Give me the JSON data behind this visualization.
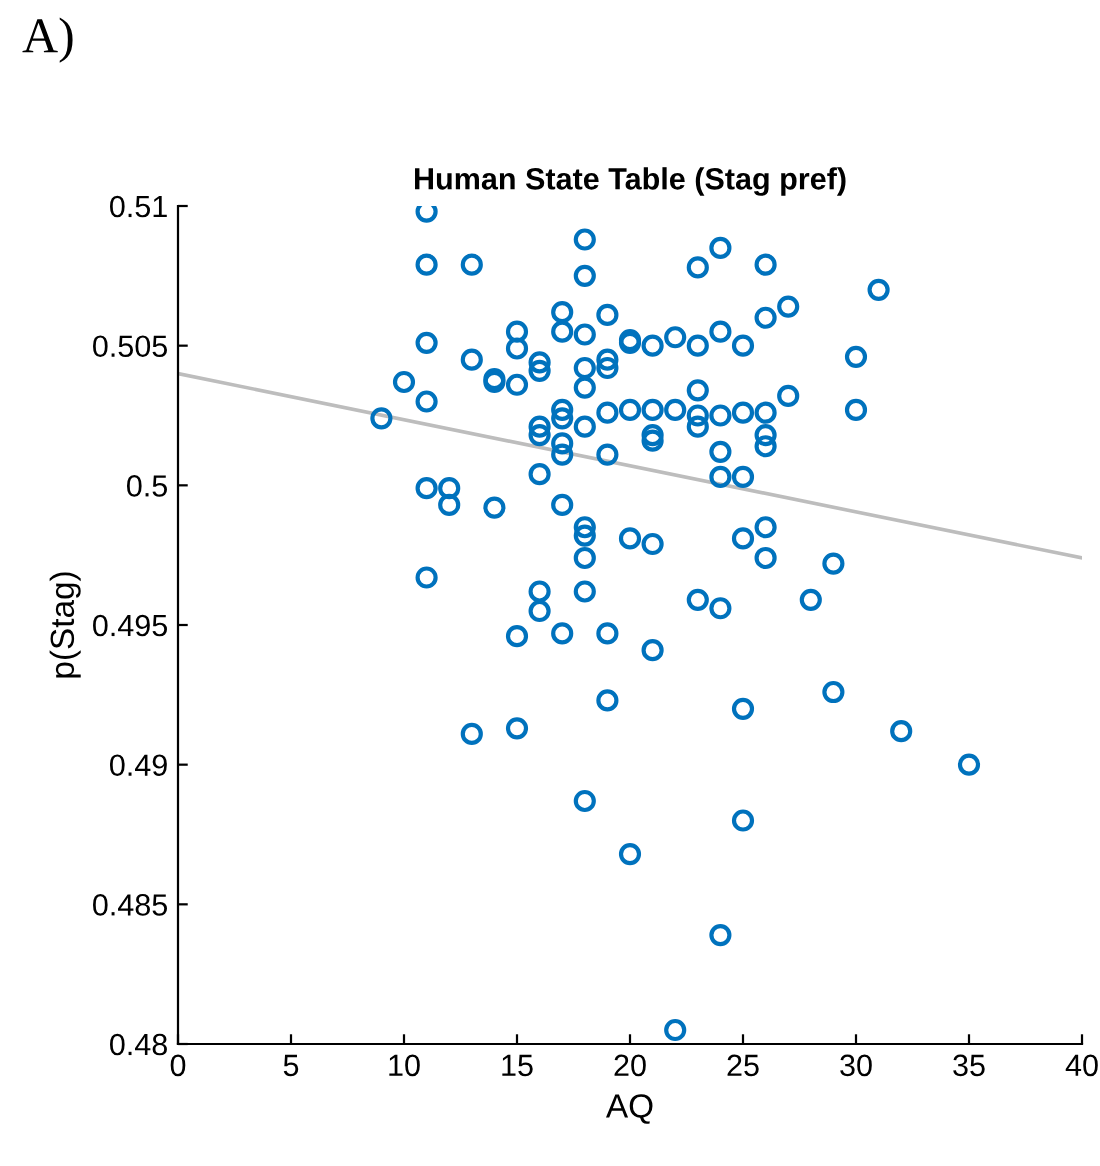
{
  "chart_data": {
    "type": "scatter",
    "title": "Human State Table (Stag pref)",
    "xlabel": "AQ",
    "ylabel": "p(Stag)",
    "annotations": [
      "A)"
    ],
    "xlim": [
      0,
      40
    ],
    "xticks": [
      0,
      5,
      10,
      15,
      20,
      25,
      30,
      35,
      40
    ],
    "ylim": [
      0.48,
      0.51
    ],
    "yticks": [
      0.48,
      0.485,
      0.49,
      0.495,
      0.5,
      0.505,
      0.51
    ],
    "grid": false,
    "series": [
      {
        "color": "#0072bd",
        "marker": "circle",
        "x": [
          9,
          10,
          11,
          11,
          11,
          11,
          11,
          11,
          12,
          12,
          13,
          13,
          13,
          14,
          14,
          14,
          15,
          15,
          15,
          15,
          15,
          16,
          16,
          16,
          16,
          16,
          16,
          16,
          17,
          17,
          17,
          17,
          17,
          17,
          17,
          17,
          18,
          18,
          18,
          18,
          18,
          18,
          18,
          18,
          18,
          18,
          18,
          19,
          19,
          19,
          19,
          19,
          19,
          19,
          20,
          20,
          20,
          20,
          20,
          21,
          21,
          21,
          21,
          21,
          21,
          22,
          22,
          22,
          23,
          23,
          23,
          23,
          23,
          23,
          24,
          24,
          24,
          24,
          24,
          24,
          24,
          25,
          25,
          25,
          25,
          25,
          25,
          26,
          26,
          26,
          26,
          26,
          26,
          26,
          27,
          27,
          28,
          29,
          29,
          30,
          30,
          31,
          32,
          35
        ],
        "values": [
          0.5024,
          0.5037,
          0.5098,
          0.5079,
          0.5051,
          0.503,
          0.4999,
          0.4967,
          0.4999,
          0.4993,
          0.5079,
          0.5045,
          0.4911,
          0.5037,
          0.5038,
          0.4992,
          0.5055,
          0.5049,
          0.5036,
          0.4946,
          0.4913,
          0.5044,
          0.5041,
          0.5021,
          0.5018,
          0.5004,
          0.4962,
          0.4955,
          0.5062,
          0.5055,
          0.5027,
          0.5024,
          0.5015,
          0.5011,
          0.4993,
          0.4947,
          0.5088,
          0.5075,
          0.5054,
          0.5042,
          0.5035,
          0.5021,
          0.4985,
          0.4982,
          0.4974,
          0.4962,
          0.4887,
          0.5061,
          0.5045,
          0.5042,
          0.5026,
          0.5011,
          0.4947,
          0.4923,
          0.5052,
          0.5051,
          0.5027,
          0.4981,
          0.4868,
          0.505,
          0.5027,
          0.5018,
          0.5016,
          0.4979,
          0.4941,
          0.5053,
          0.5027,
          0.4805,
          0.5078,
          0.505,
          0.5034,
          0.5025,
          0.5021,
          0.4959,
          0.5085,
          0.5055,
          0.5025,
          0.5012,
          0.5003,
          0.4956,
          0.4839,
          0.505,
          0.5026,
          0.5003,
          0.4981,
          0.492,
          0.488,
          0.5079,
          0.506,
          0.5026,
          0.5018,
          0.5014,
          0.4985,
          0.4974,
          0.5064,
          0.5032,
          0.4959,
          0.4972,
          0.4926,
          0.5046,
          0.5027,
          0.507,
          0.4912,
          0.49
        ]
      },
      {
        "type": "line",
        "color": "#bdbdbd",
        "marker": "none",
        "line_style": "solid",
        "x": [
          0,
          40
        ],
        "values": [
          0.504,
          0.4974
        ]
      }
    ]
  }
}
